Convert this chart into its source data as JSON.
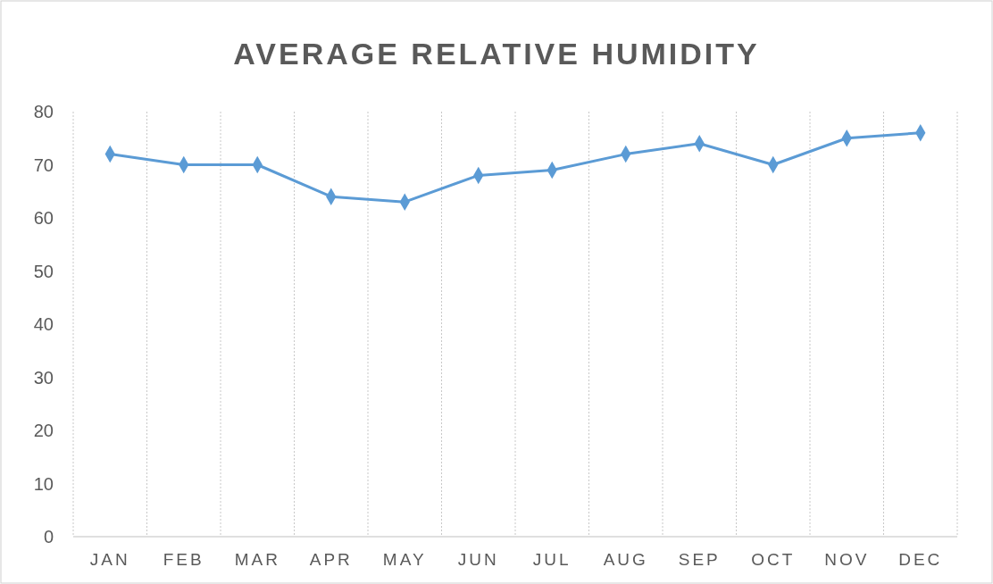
{
  "chart_data": {
    "type": "line",
    "title": "AVERAGE RELATIVE HUMIDITY",
    "categories": [
      "JAN",
      "FEB",
      "MAR",
      "APR",
      "MAY",
      "JUN",
      "JUL",
      "AUG",
      "SEP",
      "OCT",
      "NOV",
      "DEC"
    ],
    "series": [
      {
        "color": "#5b9bd5",
        "values": [
          72,
          70,
          70,
          64,
          63,
          68,
          69,
          72,
          74,
          70,
          75,
          76
        ]
      }
    ],
    "ylim": [
      0,
      80
    ],
    "yticks": [
      0,
      10,
      20,
      30,
      40,
      50,
      60,
      70,
      80
    ],
    "grid": "x",
    "marker": "diamond",
    "line_style": "solid"
  }
}
